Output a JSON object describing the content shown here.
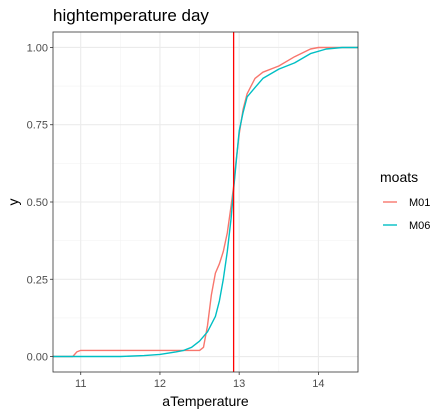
{
  "chart_data": {
    "type": "line",
    "title": "hightemperature day",
    "xlabel": "aTemperature",
    "ylabel": "y",
    "xlim": [
      10.65,
      14.5
    ],
    "ylim": [
      -0.05,
      1.05
    ],
    "x_ticks": [
      11,
      12,
      13,
      14
    ],
    "y_ticks": [
      0.0,
      0.25,
      0.5,
      0.75,
      1.0
    ],
    "x_tick_labels": [
      "11",
      "12",
      "13",
      "14"
    ],
    "y_tick_labels": [
      "0.00",
      "0.25",
      "0.50",
      "0.75",
      "1.00"
    ],
    "grid": true,
    "legend": {
      "title": "moats",
      "position": "right"
    },
    "vline": {
      "x": 12.93,
      "color": "#ff0000"
    },
    "series": [
      {
        "name": "M01",
        "color": "#F8766D",
        "points": [
          [
            10.65,
            0.0
          ],
          [
            10.9,
            0.0
          ],
          [
            10.95,
            0.015
          ],
          [
            11.0,
            0.02
          ],
          [
            11.5,
            0.02
          ],
          [
            12.0,
            0.02
          ],
          [
            12.5,
            0.02
          ],
          [
            12.55,
            0.03
          ],
          [
            12.6,
            0.1
          ],
          [
            12.65,
            0.2
          ],
          [
            12.7,
            0.27
          ],
          [
            12.75,
            0.3
          ],
          [
            12.8,
            0.34
          ],
          [
            12.85,
            0.4
          ],
          [
            12.9,
            0.49
          ],
          [
            12.93,
            0.55
          ],
          [
            12.96,
            0.63
          ],
          [
            13.0,
            0.72
          ],
          [
            13.05,
            0.8
          ],
          [
            13.1,
            0.85
          ],
          [
            13.2,
            0.9
          ],
          [
            13.3,
            0.92
          ],
          [
            13.5,
            0.94
          ],
          [
            13.7,
            0.97
          ],
          [
            13.9,
            0.995
          ],
          [
            14.0,
            1.0
          ],
          [
            14.5,
            1.0
          ]
        ]
      },
      {
        "name": "M06",
        "color": "#00BFC4",
        "points": [
          [
            10.65,
            0.0
          ],
          [
            11.0,
            0.0
          ],
          [
            11.5,
            0.0
          ],
          [
            11.8,
            0.003
          ],
          [
            12.0,
            0.007
          ],
          [
            12.2,
            0.015
          ],
          [
            12.3,
            0.02
          ],
          [
            12.4,
            0.03
          ],
          [
            12.5,
            0.05
          ],
          [
            12.6,
            0.08
          ],
          [
            12.7,
            0.13
          ],
          [
            12.75,
            0.18
          ],
          [
            12.8,
            0.25
          ],
          [
            12.85,
            0.34
          ],
          [
            12.9,
            0.45
          ],
          [
            12.93,
            0.54
          ],
          [
            12.97,
            0.65
          ],
          [
            13.0,
            0.73
          ],
          [
            13.05,
            0.79
          ],
          [
            13.1,
            0.84
          ],
          [
            13.2,
            0.87
          ],
          [
            13.3,
            0.9
          ],
          [
            13.5,
            0.93
          ],
          [
            13.7,
            0.95
          ],
          [
            13.9,
            0.98
          ],
          [
            14.1,
            0.995
          ],
          [
            14.3,
            1.0
          ],
          [
            14.5,
            1.0
          ]
        ]
      }
    ]
  }
}
